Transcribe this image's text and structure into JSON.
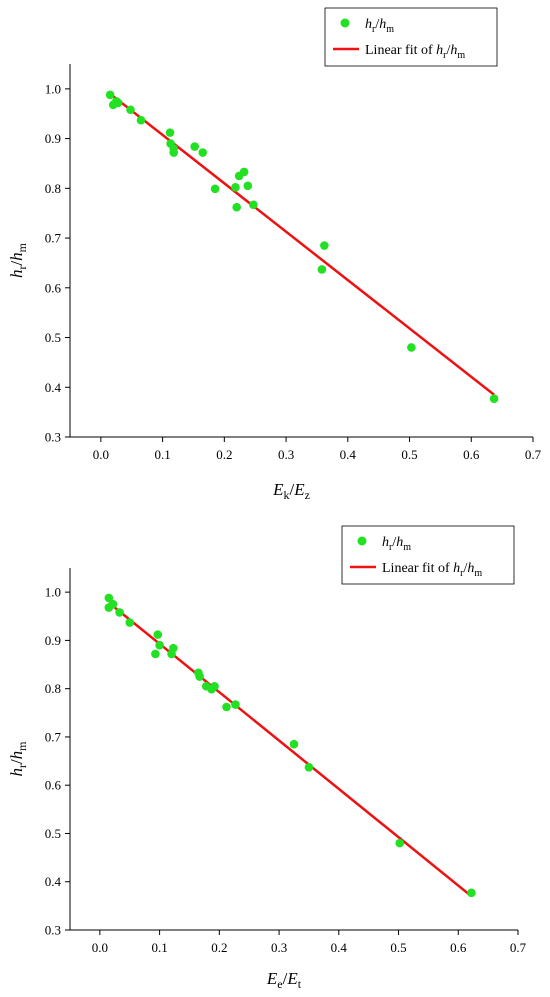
{
  "chart_data": [
    {
      "type": "scatter",
      "xlabel": {
        "main": "E",
        "sub1": "k",
        "sep": "/",
        "main2": "E",
        "sub2": "z"
      },
      "ylabel": {
        "main": "h",
        "sub1": "r",
        "sep": "/",
        "main2": "h",
        "sub2": "m"
      },
      "xlim": [
        -0.05,
        0.7
      ],
      "ylim": [
        0.3,
        1.05
      ],
      "xticks": [
        "0.0",
        "0.1",
        "0.2",
        "0.3",
        "0.4",
        "0.5",
        "0.6",
        "0.7"
      ],
      "yticks": [
        "0.3",
        "0.4",
        "0.5",
        "0.6",
        "0.7",
        "0.8",
        "0.9",
        "1.0"
      ],
      "legend_position": "top-right",
      "legend": {
        "points_label": {
          "main": "h",
          "sub1": "r",
          "sep": "/",
          "main2": "h",
          "sub2": "m"
        },
        "fit_label": {
          "prefix": "Linear fit of ",
          "main": "h",
          "sub1": "r",
          "sep": "/",
          "main2": "h",
          "sub2": "m"
        }
      },
      "series": [
        {
          "kind": "points",
          "color": "#22e022",
          "points": [
            [
              0.015,
              0.988
            ],
            [
              0.02,
              0.968
            ],
            [
              0.025,
              0.975
            ],
            [
              0.028,
              0.972
            ],
            [
              0.048,
              0.958
            ],
            [
              0.065,
              0.937
            ],
            [
              0.112,
              0.912
            ],
            [
              0.113,
              0.89
            ],
            [
              0.118,
              0.88
            ],
            [
              0.118,
              0.872
            ],
            [
              0.152,
              0.884
            ],
            [
              0.165,
              0.872
            ],
            [
              0.185,
              0.799
            ],
            [
              0.218,
              0.802
            ],
            [
              0.22,
              0.762
            ],
            [
              0.224,
              0.825
            ],
            [
              0.232,
              0.833
            ],
            [
              0.238,
              0.805
            ],
            [
              0.247,
              0.767
            ],
            [
              0.358,
              0.637
            ],
            [
              0.362,
              0.685
            ],
            [
              0.503,
              0.48
            ],
            [
              0.637,
              0.377
            ]
          ]
        },
        {
          "kind": "fit",
          "color": "#ee1111",
          "line": [
            [
              0.015,
              0.99
            ],
            [
              0.637,
              0.385
            ]
          ]
        }
      ]
    },
    {
      "type": "scatter",
      "xlabel": {
        "main": "E",
        "sub1": "e",
        "sep": "/",
        "main2": "E",
        "sub2": "t"
      },
      "ylabel": {
        "main": "h",
        "sub1": "r",
        "sep": "/",
        "main2": "h",
        "sub2": "m"
      },
      "xlim": [
        -0.05,
        0.7
      ],
      "ylim": [
        0.3,
        1.05
      ],
      "xticks": [
        "0.0",
        "0.1",
        "0.2",
        "0.3",
        "0.4",
        "0.5",
        "0.6",
        "0.7"
      ],
      "yticks": [
        "0.3",
        "0.4",
        "0.5",
        "0.6",
        "0.7",
        "0.8",
        "0.9",
        "1.0"
      ],
      "legend_position": "top-right",
      "legend": {
        "points_label": {
          "main": "h",
          "sub1": "r",
          "sep": "/",
          "main2": "h",
          "sub2": "m"
        },
        "fit_label": {
          "prefix": "Linear fit of ",
          "main": "h",
          "sub1": "r",
          "sep": "/",
          "main2": "h",
          "sub2": "m"
        }
      },
      "series": [
        {
          "kind": "points",
          "color": "#22e022",
          "points": [
            [
              0.015,
              0.988
            ],
            [
              0.015,
              0.968
            ],
            [
              0.022,
              0.975
            ],
            [
              0.033,
              0.958
            ],
            [
              0.05,
              0.937
            ],
            [
              0.093,
              0.872
            ],
            [
              0.097,
              0.912
            ],
            [
              0.1,
              0.89
            ],
            [
              0.12,
              0.872
            ],
            [
              0.123,
              0.884
            ],
            [
              0.165,
              0.833
            ],
            [
              0.167,
              0.825
            ],
            [
              0.178,
              0.805
            ],
            [
              0.187,
              0.799
            ],
            [
              0.192,
              0.805
            ],
            [
              0.212,
              0.762
            ],
            [
              0.227,
              0.767
            ],
            [
              0.325,
              0.685
            ],
            [
              0.35,
              0.637
            ],
            [
              0.502,
              0.48
            ],
            [
              0.622,
              0.377
            ]
          ]
        },
        {
          "kind": "fit",
          "color": "#ee1111",
          "line": [
            [
              0.015,
              0.978
            ],
            [
              0.622,
              0.37
            ]
          ]
        }
      ]
    }
  ]
}
